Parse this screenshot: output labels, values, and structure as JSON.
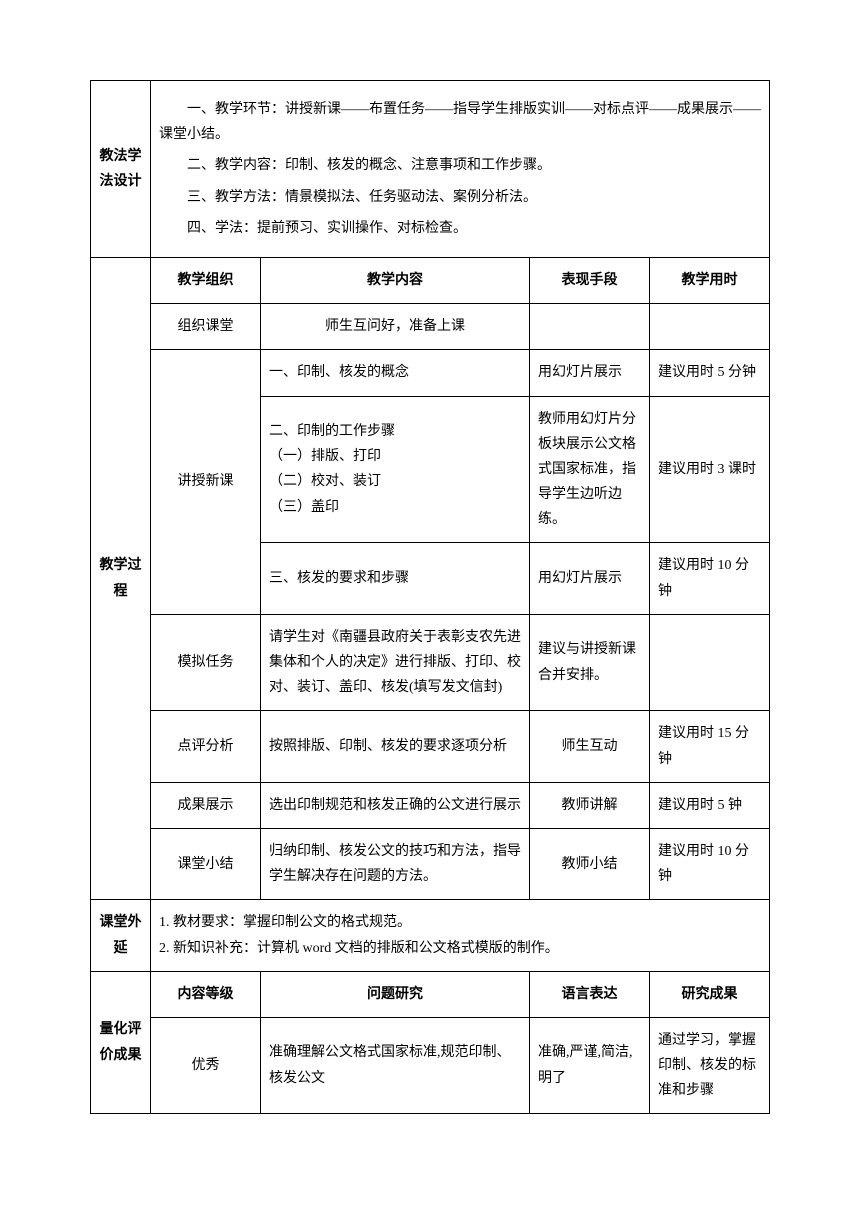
{
  "sections": {
    "teaching_method_design": {
      "label": "教法学法设计",
      "lines": [
        "一、教学环节：讲授新课——布置任务——指导学生排版实训——对标点评——成果展示——课堂小结。",
        "二、教学内容：印制、核发的概念、注意事项和工作步骤。",
        "三、教学方法：情景模拟法、任务驱动法、案例分析法。",
        "四、学法：提前预习、实训操作、对标检查。"
      ]
    },
    "teaching_process": {
      "label": "教学过程",
      "headers": {
        "organization": "教学组织",
        "content": "教学内容",
        "method": "表现手段",
        "time": "教学用时"
      },
      "rows": [
        {
          "org": "组织课堂",
          "content": "师生互问好，准备上课",
          "method": "",
          "time": ""
        },
        {
          "org": "讲授新课",
          "org_rowspan": 3,
          "content": "一、印制、核发的概念",
          "method": "用幻灯片展示",
          "time": "建议用时 5 分钟"
        },
        {
          "content_lines": [
            "二、印制的工作步骤",
            "（一）排版、打印",
            "（二）校对、装订",
            "（三）盖印"
          ],
          "method": "教师用幻灯片分板块展示公文格式国家标准，指导学生边听边练。",
          "time": "建议用时 3 课时"
        },
        {
          "content": "三、核发的要求和步骤",
          "method": "用幻灯片展示",
          "time": "建议用时 10 分钟"
        },
        {
          "org": "模拟任务",
          "content": "请学生对《南疆县政府关于表彰支农先进集体和个人的决定》进行排版、打印、校对、装订、盖印、核发(填写发文信封)",
          "method": "建议与讲授新课合并安排。",
          "time": ""
        },
        {
          "org": "点评分析",
          "content": "按照排版、印制、核发的要求逐项分析",
          "method": "师生互动",
          "method_center": true,
          "time": "建议用时 15 分钟"
        },
        {
          "org": "成果展示",
          "content": "选出印制规范和核发正确的公文进行展示",
          "method": "教师讲解",
          "method_center": true,
          "time": "建议用时 5 钟"
        },
        {
          "org": "课堂小结",
          "content": "归纳印制、核发公文的技巧和方法，指导学生解决存在问题的方法。",
          "method": "教师小结",
          "method_center": true,
          "time": "建议用时 10 分钟"
        }
      ]
    },
    "extension": {
      "label": "课堂外延",
      "lines": [
        "1.  教材要求：掌握印制公文的格式规范。",
        "2.  新知识补充：计算机 word 文档的排版和公文格式模版的制作。"
      ]
    },
    "evaluation": {
      "label": "量化评价成果",
      "headers": {
        "level": "内容等级",
        "problem": "问题研究",
        "language": "语言表达",
        "result": "研究成果"
      },
      "rows": [
        {
          "level": "优秀",
          "problem": "准确理解公文格式国家标准,规范印制、核发公文",
          "language": "准确,严谨,简洁,明了",
          "result": "通过学习，掌握印制、核发的标准和步骤"
        }
      ]
    }
  }
}
